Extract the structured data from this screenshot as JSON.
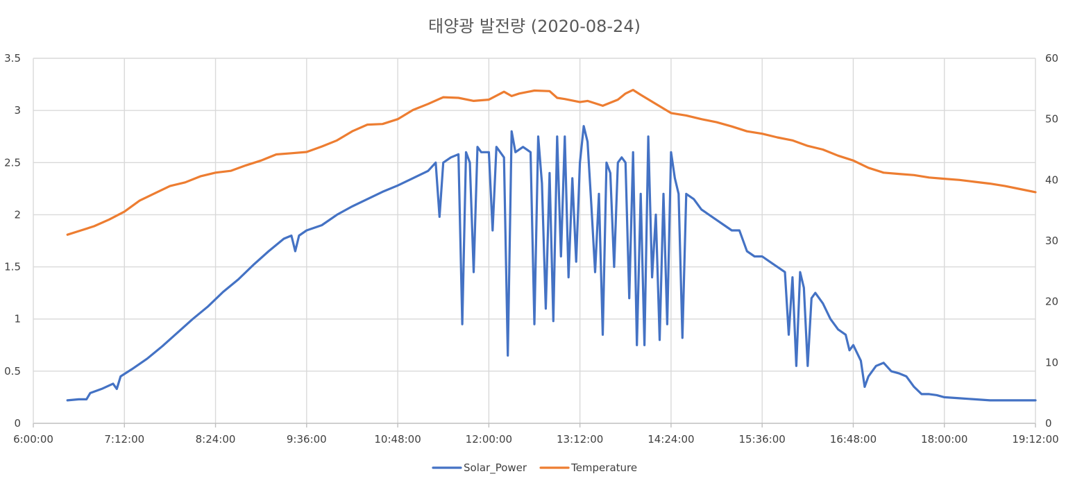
{
  "chart_data": {
    "type": "line",
    "title": "태양광 발전량  (2020-08-24)",
    "xlabel": "",
    "ylabel": "",
    "x_range_hours": [
      6.0,
      19.2
    ],
    "x_tick_labels": [
      "6:00:00",
      "7:12:00",
      "8:24:00",
      "9:36:00",
      "10:48:00",
      "12:00:00",
      "13:12:00",
      "14:24:00",
      "15:36:00",
      "16:48:00",
      "18:00:00",
      "19:12:00"
    ],
    "y_left": {
      "ylim": [
        0,
        3.5
      ],
      "ticks": [
        "0",
        "0.5",
        "1",
        "1.5",
        "2",
        "2.5",
        "3",
        "3.5"
      ]
    },
    "y_right": {
      "ylim": [
        0,
        60
      ],
      "ticks": [
        "0",
        "10",
        "20",
        "30",
        "40",
        "50",
        "60"
      ]
    },
    "grid": true,
    "legend": "bottom-center",
    "series": [
      {
        "name": "Solar_Power",
        "axis": "left",
        "color": "#4472c4",
        "points": [
          [
            6.45,
            0.22
          ],
          [
            6.6,
            0.23
          ],
          [
            6.7,
            0.23
          ],
          [
            6.75,
            0.29
          ],
          [
            6.9,
            0.33
          ],
          [
            7.05,
            0.38
          ],
          [
            7.1,
            0.33
          ],
          [
            7.15,
            0.45
          ],
          [
            7.3,
            0.52
          ],
          [
            7.5,
            0.62
          ],
          [
            7.7,
            0.74
          ],
          [
            7.9,
            0.87
          ],
          [
            8.1,
            1.0
          ],
          [
            8.3,
            1.12
          ],
          [
            8.5,
            1.26
          ],
          [
            8.7,
            1.38
          ],
          [
            8.9,
            1.52
          ],
          [
            9.1,
            1.65
          ],
          [
            9.3,
            1.77
          ],
          [
            9.4,
            1.8
          ],
          [
            9.45,
            1.65
          ],
          [
            9.5,
            1.8
          ],
          [
            9.6,
            1.85
          ],
          [
            9.8,
            1.9
          ],
          [
            10.0,
            2.0
          ],
          [
            10.2,
            2.08
          ],
          [
            10.4,
            2.15
          ],
          [
            10.6,
            2.22
          ],
          [
            10.8,
            2.28
          ],
          [
            11.0,
            2.35
          ],
          [
            11.2,
            2.42
          ],
          [
            11.3,
            2.5
          ],
          [
            11.35,
            1.98
          ],
          [
            11.4,
            2.5
          ],
          [
            11.5,
            2.55
          ],
          [
            11.6,
            2.58
          ],
          [
            11.65,
            0.95
          ],
          [
            11.7,
            2.6
          ],
          [
            11.75,
            2.5
          ],
          [
            11.8,
            1.45
          ],
          [
            11.85,
            2.65
          ],
          [
            11.9,
            2.6
          ],
          [
            12.0,
            2.6
          ],
          [
            12.05,
            1.85
          ],
          [
            12.1,
            2.65
          ],
          [
            12.2,
            2.55
          ],
          [
            12.25,
            0.65
          ],
          [
            12.3,
            2.8
          ],
          [
            12.35,
            2.6
          ],
          [
            12.45,
            2.65
          ],
          [
            12.55,
            2.6
          ],
          [
            12.6,
            0.95
          ],
          [
            12.65,
            2.75
          ],
          [
            12.7,
            2.3
          ],
          [
            12.75,
            1.1
          ],
          [
            12.8,
            2.4
          ],
          [
            12.85,
            0.98
          ],
          [
            12.9,
            2.75
          ],
          [
            12.95,
            1.6
          ],
          [
            13.0,
            2.75
          ],
          [
            13.05,
            1.4
          ],
          [
            13.1,
            2.35
          ],
          [
            13.15,
            1.55
          ],
          [
            13.2,
            2.5
          ],
          [
            13.25,
            2.85
          ],
          [
            13.3,
            2.7
          ],
          [
            13.35,
            2.1
          ],
          [
            13.4,
            1.45
          ],
          [
            13.45,
            2.2
          ],
          [
            13.5,
            0.85
          ],
          [
            13.55,
            2.5
          ],
          [
            13.6,
            2.4
          ],
          [
            13.65,
            1.5
          ],
          [
            13.7,
            2.5
          ],
          [
            13.75,
            2.55
          ],
          [
            13.8,
            2.5
          ],
          [
            13.85,
            1.2
          ],
          [
            13.9,
            2.6
          ],
          [
            13.95,
            0.75
          ],
          [
            14.0,
            2.2
          ],
          [
            14.05,
            0.75
          ],
          [
            14.1,
            2.75
          ],
          [
            14.15,
            1.4
          ],
          [
            14.2,
            2.0
          ],
          [
            14.25,
            0.8
          ],
          [
            14.3,
            2.2
          ],
          [
            14.35,
            0.95
          ],
          [
            14.4,
            2.6
          ],
          [
            14.45,
            2.35
          ],
          [
            14.5,
            2.2
          ],
          [
            14.55,
            0.82
          ],
          [
            14.6,
            2.2
          ],
          [
            14.7,
            2.15
          ],
          [
            14.8,
            2.05
          ],
          [
            14.9,
            2.0
          ],
          [
            15.0,
            1.95
          ],
          [
            15.1,
            1.9
          ],
          [
            15.2,
            1.85
          ],
          [
            15.3,
            1.85
          ],
          [
            15.4,
            1.65
          ],
          [
            15.5,
            1.6
          ],
          [
            15.6,
            1.6
          ],
          [
            15.7,
            1.55
          ],
          [
            15.8,
            1.5
          ],
          [
            15.9,
            1.45
          ],
          [
            15.95,
            0.85
          ],
          [
            16.0,
            1.4
          ],
          [
            16.05,
            0.55
          ],
          [
            16.1,
            1.45
          ],
          [
            16.15,
            1.3
          ],
          [
            16.2,
            0.55
          ],
          [
            16.25,
            1.2
          ],
          [
            16.3,
            1.25
          ],
          [
            16.4,
            1.15
          ],
          [
            16.5,
            1.0
          ],
          [
            16.6,
            0.9
          ],
          [
            16.7,
            0.85
          ],
          [
            16.75,
            0.7
          ],
          [
            16.8,
            0.75
          ],
          [
            16.9,
            0.6
          ],
          [
            16.95,
            0.35
          ],
          [
            17.0,
            0.45
          ],
          [
            17.1,
            0.55
          ],
          [
            17.2,
            0.58
          ],
          [
            17.3,
            0.5
          ],
          [
            17.4,
            0.48
          ],
          [
            17.5,
            0.45
          ],
          [
            17.6,
            0.35
          ],
          [
            17.7,
            0.28
          ],
          [
            17.8,
            0.28
          ],
          [
            17.9,
            0.27
          ],
          [
            18.0,
            0.25
          ],
          [
            18.2,
            0.24
          ],
          [
            18.4,
            0.23
          ],
          [
            18.6,
            0.22
          ],
          [
            18.8,
            0.22
          ],
          [
            19.0,
            0.22
          ],
          [
            19.2,
            0.22
          ]
        ]
      },
      {
        "name": "Temperature",
        "axis": "right",
        "color": "#ed7d31",
        "points": [
          [
            6.45,
            31.0
          ],
          [
            6.6,
            31.6
          ],
          [
            6.8,
            32.4
          ],
          [
            7.0,
            33.5
          ],
          [
            7.2,
            34.8
          ],
          [
            7.4,
            36.6
          ],
          [
            7.6,
            37.8
          ],
          [
            7.8,
            39.0
          ],
          [
            8.0,
            39.6
          ],
          [
            8.2,
            40.6
          ],
          [
            8.4,
            41.2
          ],
          [
            8.6,
            41.5
          ],
          [
            8.8,
            42.4
          ],
          [
            9.0,
            43.2
          ],
          [
            9.2,
            44.2
          ],
          [
            9.4,
            44.4
          ],
          [
            9.6,
            44.6
          ],
          [
            9.8,
            45.5
          ],
          [
            10.0,
            46.5
          ],
          [
            10.2,
            48.0
          ],
          [
            10.4,
            49.1
          ],
          [
            10.6,
            49.2
          ],
          [
            10.8,
            50.0
          ],
          [
            11.0,
            51.5
          ],
          [
            11.2,
            52.5
          ],
          [
            11.4,
            53.6
          ],
          [
            11.6,
            53.5
          ],
          [
            11.8,
            53.0
          ],
          [
            12.0,
            53.2
          ],
          [
            12.2,
            54.5
          ],
          [
            12.3,
            53.8
          ],
          [
            12.4,
            54.2
          ],
          [
            12.6,
            54.7
          ],
          [
            12.8,
            54.6
          ],
          [
            12.9,
            53.5
          ],
          [
            13.0,
            53.3
          ],
          [
            13.2,
            52.8
          ],
          [
            13.3,
            53.0
          ],
          [
            13.5,
            52.2
          ],
          [
            13.7,
            53.2
          ],
          [
            13.8,
            54.2
          ],
          [
            13.9,
            54.8
          ],
          [
            14.0,
            54.0
          ],
          [
            14.2,
            52.5
          ],
          [
            14.4,
            51.0
          ],
          [
            14.6,
            50.6
          ],
          [
            14.8,
            50.0
          ],
          [
            15.0,
            49.5
          ],
          [
            15.2,
            48.8
          ],
          [
            15.4,
            48.0
          ],
          [
            15.6,
            47.6
          ],
          [
            15.8,
            47.0
          ],
          [
            16.0,
            46.5
          ],
          [
            16.2,
            45.6
          ],
          [
            16.4,
            45.0
          ],
          [
            16.6,
            44.0
          ],
          [
            16.8,
            43.2
          ],
          [
            17.0,
            42.0
          ],
          [
            17.2,
            41.2
          ],
          [
            17.4,
            41.0
          ],
          [
            17.6,
            40.8
          ],
          [
            17.8,
            40.4
          ],
          [
            18.0,
            40.2
          ],
          [
            18.2,
            40.0
          ],
          [
            18.4,
            39.7
          ],
          [
            18.6,
            39.4
          ],
          [
            18.8,
            39.0
          ],
          [
            19.0,
            38.5
          ],
          [
            19.2,
            38.0
          ]
        ]
      }
    ]
  }
}
